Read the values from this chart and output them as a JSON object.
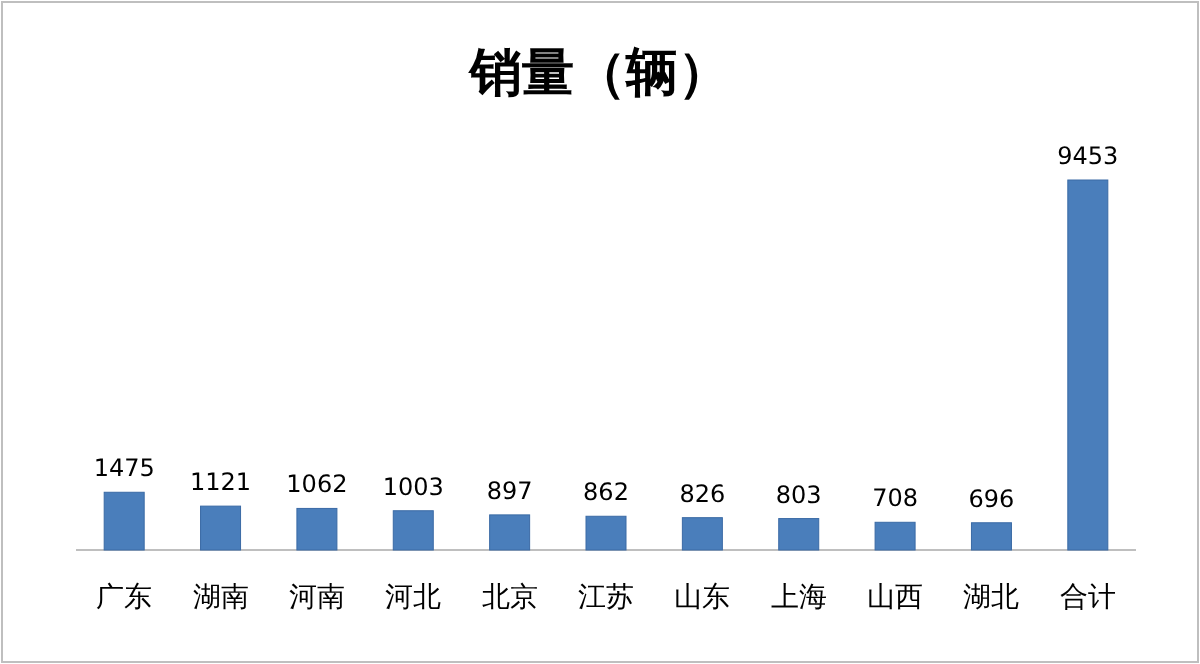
{
  "chart_data": {
    "type": "bar",
    "title": "销量（辆）",
    "categories": [
      "广东",
      "湖南",
      "河南",
      "河北",
      "北京",
      "江苏",
      "山东",
      "上海",
      "山西",
      "湖北",
      "合计"
    ],
    "values": [
      1475,
      1121,
      1062,
      1003,
      897,
      862,
      826,
      803,
      708,
      696,
      9453
    ],
    "color": "#4a7ebb",
    "data_labels": true
  }
}
